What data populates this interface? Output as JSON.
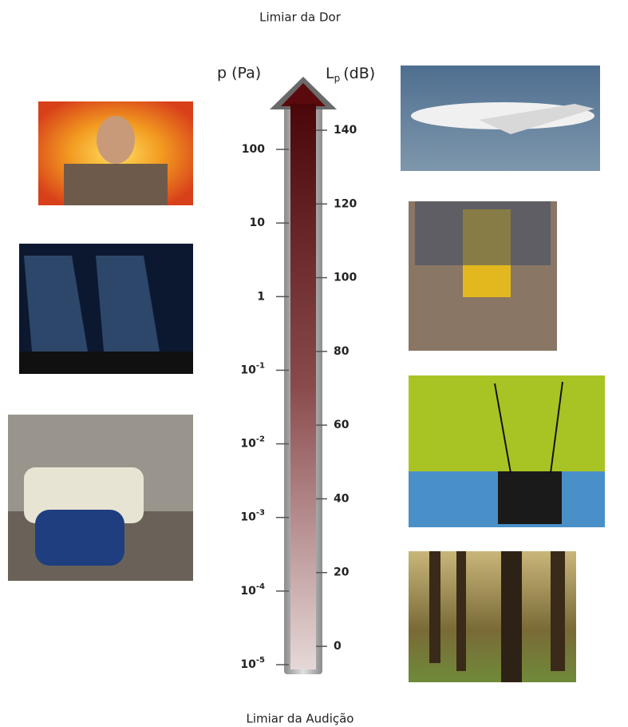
{
  "top_label": "Limiar da Dor",
  "bottom_label": "Limiar da Audição",
  "pressure_axis": {
    "label": "p (Pa)",
    "ticks": [
      {
        "base": "100"
      },
      {
        "base": "10"
      },
      {
        "base": "1"
      },
      {
        "base": "10",
        "exp": "-1"
      },
      {
        "base": "10",
        "exp": "-2"
      },
      {
        "base": "10",
        "exp": "-3"
      },
      {
        "base": "10",
        "exp": "-4"
      },
      {
        "base": "10",
        "exp": "-5"
      }
    ]
  },
  "level_axis": {
    "label": "L",
    "label_sub": "p",
    "label_unit": "(dB)",
    "ticks": [
      "140",
      "120",
      "100",
      "80",
      "60",
      "40",
      "20",
      "0"
    ]
  }
}
